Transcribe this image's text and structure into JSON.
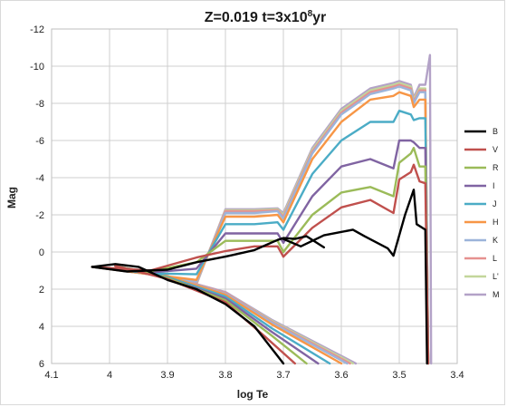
{
  "chart_data": {
    "type": "line",
    "title_main": "Z=0.019   t=3x10",
    "title_exp": "8",
    "title_tail": "yr",
    "xlabel": "log Te",
    "ylabel": "Mag",
    "xlim": [
      4.1,
      3.4
    ],
    "ylim": [
      -12,
      6
    ],
    "x_ticks": [
      "4.1",
      "4",
      "3.9",
      "3.8",
      "3.7",
      "3.6",
      "3.5",
      "3.4"
    ],
    "y_ticks": [
      "-12",
      "-10",
      "-8",
      "-6",
      "-4",
      "-2",
      "0",
      "2",
      "4",
      "6"
    ],
    "grid": true,
    "legend_position": "right",
    "series": [
      {
        "name": "B",
        "color": "#000000",
        "upper": [
          [
            4.03,
            0.8
          ],
          [
            3.99,
            0.65
          ],
          [
            3.95,
            0.8
          ],
          [
            3.9,
            1.5
          ],
          [
            3.85,
            2.0
          ],
          [
            3.8,
            2.8
          ],
          [
            3.75,
            4.0
          ],
          [
            3.71,
            5.6
          ],
          [
            3.7,
            6.0
          ]
        ],
        "lower": [
          [
            4.03,
            0.8
          ],
          [
            3.97,
            1.05
          ],
          [
            3.9,
            0.95
          ],
          [
            3.85,
            0.55
          ],
          [
            3.8,
            0.25
          ],
          [
            3.75,
            -0.1
          ],
          [
            3.71,
            -0.65
          ],
          [
            3.7,
            -0.75
          ],
          [
            3.68,
            -0.7
          ],
          [
            3.66,
            -0.85
          ],
          [
            3.63,
            -0.25
          ]
        ],
        "rgb": [
          [
            3.7,
            -0.7
          ],
          [
            3.67,
            -0.3
          ],
          [
            3.63,
            -0.9
          ],
          [
            3.58,
            -1.2
          ],
          [
            3.56,
            -0.85
          ],
          [
            3.52,
            -0.2
          ],
          [
            3.51,
            0.2
          ],
          [
            3.49,
            -2.0
          ],
          [
            3.475,
            -3.35
          ],
          [
            3.47,
            -1.5
          ],
          [
            3.455,
            -1.2
          ],
          [
            3.452,
            6.0
          ]
        ],
        "_note": "upper=main-sequence branch toward faint mags; lower=sub branch; rgb=giant branch"
      },
      {
        "name": "V",
        "color": "#c0504d",
        "upper": [
          [
            3.99,
            0.75
          ],
          [
            3.9,
            1.45
          ],
          [
            3.8,
            2.7
          ],
          [
            3.73,
            4.6
          ],
          [
            3.68,
            6.0
          ]
        ],
        "lower": [
          [
            4.03,
            0.8
          ],
          [
            3.93,
            1.0
          ],
          [
            3.85,
            0.3
          ],
          [
            3.8,
            -0.05
          ],
          [
            3.75,
            -0.3
          ],
          [
            3.71,
            -0.3
          ],
          [
            3.7,
            0.25
          ]
        ],
        "rgb": [
          [
            3.7,
            0.25
          ],
          [
            3.65,
            -1.3
          ],
          [
            3.6,
            -2.4
          ],
          [
            3.55,
            -2.8
          ],
          [
            3.51,
            -2.1
          ],
          [
            3.5,
            -3.9
          ],
          [
            3.48,
            -4.3
          ],
          [
            3.475,
            -4.7
          ],
          [
            3.465,
            -3.8
          ],
          [
            3.455,
            -3.7
          ],
          [
            3.45,
            6.0
          ]
        ]
      },
      {
        "name": "R",
        "color": "#9bbb59",
        "upper": [
          [
            3.99,
            0.75
          ],
          [
            3.9,
            1.4
          ],
          [
            3.8,
            2.6
          ],
          [
            3.72,
            4.5
          ],
          [
            3.66,
            6.0
          ]
        ],
        "lower": [
          [
            4.03,
            0.8
          ],
          [
            3.93,
            1.05
          ],
          [
            3.85,
            0.55
          ],
          [
            3.8,
            -0.6
          ],
          [
            3.75,
            -0.6
          ],
          [
            3.71,
            -0.6
          ],
          [
            3.7,
            0.0
          ]
        ],
        "rgb": [
          [
            3.7,
            0.0
          ],
          [
            3.65,
            -2.0
          ],
          [
            3.6,
            -3.2
          ],
          [
            3.55,
            -3.5
          ],
          [
            3.51,
            -3.0
          ],
          [
            3.5,
            -4.8
          ],
          [
            3.48,
            -5.3
          ],
          [
            3.475,
            -5.6
          ],
          [
            3.465,
            -4.6
          ],
          [
            3.455,
            -4.6
          ],
          [
            3.45,
            6.0
          ]
        ]
      },
      {
        "name": "I",
        "color": "#8064a2",
        "upper": [
          [
            3.99,
            0.75
          ],
          [
            3.9,
            1.4
          ],
          [
            3.8,
            2.5
          ],
          [
            3.72,
            4.3
          ],
          [
            3.64,
            6.0
          ]
        ],
        "lower": [
          [
            4.03,
            0.8
          ],
          [
            3.93,
            1.1
          ],
          [
            3.85,
            0.9
          ],
          [
            3.8,
            -1.0
          ],
          [
            3.75,
            -1.0
          ],
          [
            3.71,
            -1.0
          ],
          [
            3.7,
            -0.5
          ]
        ],
        "rgb": [
          [
            3.7,
            -0.5
          ],
          [
            3.65,
            -3.0
          ],
          [
            3.6,
            -4.6
          ],
          [
            3.55,
            -5.0
          ],
          [
            3.51,
            -4.5
          ],
          [
            3.5,
            -6.0
          ],
          [
            3.48,
            -6.0
          ],
          [
            3.475,
            -5.9
          ],
          [
            3.465,
            -5.6
          ],
          [
            3.455,
            -5.6
          ],
          [
            3.45,
            6.0
          ]
        ]
      },
      {
        "name": "J",
        "color": "#4bacc6",
        "upper": [
          [
            3.99,
            0.75
          ],
          [
            3.9,
            1.35
          ],
          [
            3.8,
            2.4
          ],
          [
            3.72,
            4.1
          ],
          [
            3.62,
            6.0
          ]
        ],
        "lower": [
          [
            4.03,
            0.8
          ],
          [
            3.93,
            1.15
          ],
          [
            3.85,
            1.2
          ],
          [
            3.8,
            -1.5
          ],
          [
            3.75,
            -1.5
          ],
          [
            3.71,
            -1.6
          ],
          [
            3.7,
            -1.2
          ]
        ],
        "rgb": [
          [
            3.7,
            -1.2
          ],
          [
            3.65,
            -4.2
          ],
          [
            3.6,
            -6.0
          ],
          [
            3.55,
            -7.0
          ],
          [
            3.51,
            -7.0
          ],
          [
            3.5,
            -7.6
          ],
          [
            3.48,
            -7.4
          ],
          [
            3.475,
            -7.1
          ],
          [
            3.465,
            -7.2
          ],
          [
            3.455,
            -7.2
          ],
          [
            3.45,
            6.0
          ]
        ]
      },
      {
        "name": "H",
        "color": "#f79646",
        "upper": [
          [
            3.99,
            0.75
          ],
          [
            3.9,
            1.3
          ],
          [
            3.8,
            2.3
          ],
          [
            3.72,
            3.9
          ],
          [
            3.6,
            6.0
          ]
        ],
        "lower": [
          [
            4.03,
            0.8
          ],
          [
            3.93,
            1.2
          ],
          [
            3.85,
            1.5
          ],
          [
            3.8,
            -1.9
          ],
          [
            3.75,
            -1.9
          ],
          [
            3.71,
            -2.0
          ],
          [
            3.7,
            -1.6
          ]
        ],
        "rgb": [
          [
            3.7,
            -1.6
          ],
          [
            3.65,
            -5.0
          ],
          [
            3.6,
            -7.0
          ],
          [
            3.55,
            -8.2
          ],
          [
            3.51,
            -8.4
          ],
          [
            3.5,
            -8.6
          ],
          [
            3.48,
            -8.4
          ],
          [
            3.475,
            -7.8
          ],
          [
            3.465,
            -8.2
          ],
          [
            3.455,
            -8.2
          ],
          [
            3.45,
            6.0
          ]
        ]
      },
      {
        "name": "K",
        "color": "#9cb4da",
        "upper": [
          [
            3.99,
            0.75
          ],
          [
            3.9,
            1.3
          ],
          [
            3.8,
            2.25
          ],
          [
            3.72,
            3.8
          ],
          [
            3.59,
            6.0
          ]
        ],
        "lower": [
          [
            4.03,
            0.8
          ],
          [
            3.93,
            1.2
          ],
          [
            3.85,
            1.6
          ],
          [
            3.8,
            -2.1
          ],
          [
            3.75,
            -2.1
          ],
          [
            3.71,
            -2.2
          ],
          [
            3.7,
            -1.8
          ]
        ],
        "rgb": [
          [
            3.7,
            -1.8
          ],
          [
            3.65,
            -5.3
          ],
          [
            3.6,
            -7.4
          ],
          [
            3.55,
            -8.5
          ],
          [
            3.51,
            -8.8
          ],
          [
            3.5,
            -8.9
          ],
          [
            3.48,
            -8.7
          ],
          [
            3.475,
            -8.0
          ],
          [
            3.465,
            -8.6
          ],
          [
            3.455,
            -8.6
          ],
          [
            3.45,
            6.0
          ]
        ]
      },
      {
        "name": "L",
        "color": "#e6918f",
        "upper": [
          [
            3.99,
            0.75
          ],
          [
            3.9,
            1.3
          ],
          [
            3.8,
            2.2
          ],
          [
            3.72,
            3.75
          ],
          [
            3.585,
            6.0
          ]
        ],
        "lower": [
          [
            4.03,
            0.8
          ],
          [
            3.93,
            1.2
          ],
          [
            3.85,
            1.65
          ],
          [
            3.8,
            -2.2
          ],
          [
            3.75,
            -2.2
          ],
          [
            3.71,
            -2.25
          ],
          [
            3.7,
            -1.9
          ]
        ],
        "rgb": [
          [
            3.7,
            -1.9
          ],
          [
            3.65,
            -5.4
          ],
          [
            3.6,
            -7.5
          ],
          [
            3.55,
            -8.6
          ],
          [
            3.51,
            -8.9
          ],
          [
            3.5,
            -9.0
          ],
          [
            3.48,
            -8.8
          ],
          [
            3.475,
            -8.1
          ],
          [
            3.465,
            -8.7
          ],
          [
            3.455,
            -8.7
          ],
          [
            3.45,
            6.0
          ]
        ]
      },
      {
        "name": "L'",
        "color": "#c3d69b",
        "upper": [
          [
            3.99,
            0.75
          ],
          [
            3.9,
            1.3
          ],
          [
            3.8,
            2.2
          ],
          [
            3.72,
            3.7
          ],
          [
            3.58,
            6.0
          ]
        ],
        "lower": [
          [
            4.03,
            0.8
          ],
          [
            3.93,
            1.2
          ],
          [
            3.85,
            1.7
          ],
          [
            3.8,
            -2.25
          ],
          [
            3.75,
            -2.25
          ],
          [
            3.71,
            -2.3
          ],
          [
            3.7,
            -2.0
          ]
        ],
        "rgb": [
          [
            3.7,
            -2.0
          ],
          [
            3.65,
            -5.5
          ],
          [
            3.6,
            -7.6
          ],
          [
            3.55,
            -8.7
          ],
          [
            3.51,
            -9.0
          ],
          [
            3.5,
            -9.1
          ],
          [
            3.48,
            -8.9
          ],
          [
            3.475,
            -8.2
          ],
          [
            3.465,
            -8.8
          ],
          [
            3.455,
            -8.8
          ],
          [
            3.45,
            6.0
          ]
        ]
      },
      {
        "name": "M",
        "color": "#b3a2c7",
        "upper": [
          [
            3.99,
            0.75
          ],
          [
            3.9,
            1.3
          ],
          [
            3.8,
            2.15
          ],
          [
            3.72,
            3.65
          ],
          [
            3.575,
            6.0
          ]
        ],
        "lower": [
          [
            4.03,
            0.8
          ],
          [
            3.93,
            1.2
          ],
          [
            3.85,
            1.75
          ],
          [
            3.8,
            -2.3
          ],
          [
            3.75,
            -2.3
          ],
          [
            3.71,
            -2.35
          ],
          [
            3.7,
            -2.1
          ]
        ],
        "rgb": [
          [
            3.7,
            -2.1
          ],
          [
            3.65,
            -5.6
          ],
          [
            3.6,
            -7.7
          ],
          [
            3.55,
            -8.8
          ],
          [
            3.51,
            -9.1
          ],
          [
            3.5,
            -9.2
          ],
          [
            3.48,
            -9.0
          ],
          [
            3.475,
            -8.3
          ],
          [
            3.465,
            -9.0
          ],
          [
            3.455,
            -9.0
          ],
          [
            3.447,
            -10.6
          ],
          [
            3.445,
            6.0
          ]
        ]
      }
    ]
  }
}
